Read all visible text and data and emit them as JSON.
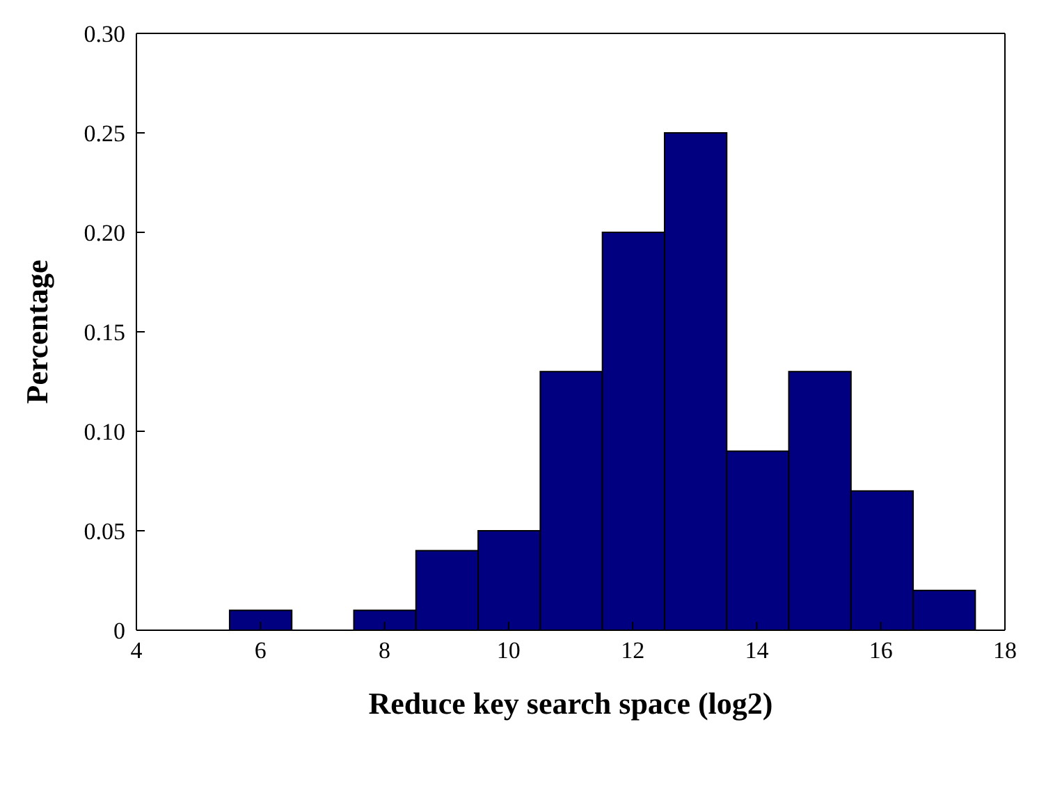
{
  "chart_data": {
    "type": "histogram",
    "xlabel": "Reduce key search space (log2)",
    "ylabel": "Percentage",
    "bins": [
      5.5,
      6.5,
      7.5,
      8.5,
      9.5,
      10.5,
      11.5,
      12.5,
      13.5,
      14.5,
      15.5,
      16.5,
      17.5
    ],
    "values": [
      0.01,
      0,
      0.01,
      0.04,
      0.05,
      0.13,
      0.2,
      0.25,
      0.09,
      0.13,
      0.07,
      0.02
    ],
    "color": "#000080",
    "xlim": [
      4,
      18
    ],
    "xticks": [
      4,
      6,
      8,
      10,
      12,
      14,
      16,
      18
    ],
    "ylim": [
      0,
      0.3
    ],
    "yticks": [
      0,
      0.05,
      {
        "value": 0.1,
        "label": "0.10"
      },
      0.15,
      {
        "value": 0.2,
        "label": "0.20"
      },
      0.25,
      {
        "value": 0.3,
        "label": "0.30"
      }
    ],
    "grid": false,
    "legend": false
  }
}
